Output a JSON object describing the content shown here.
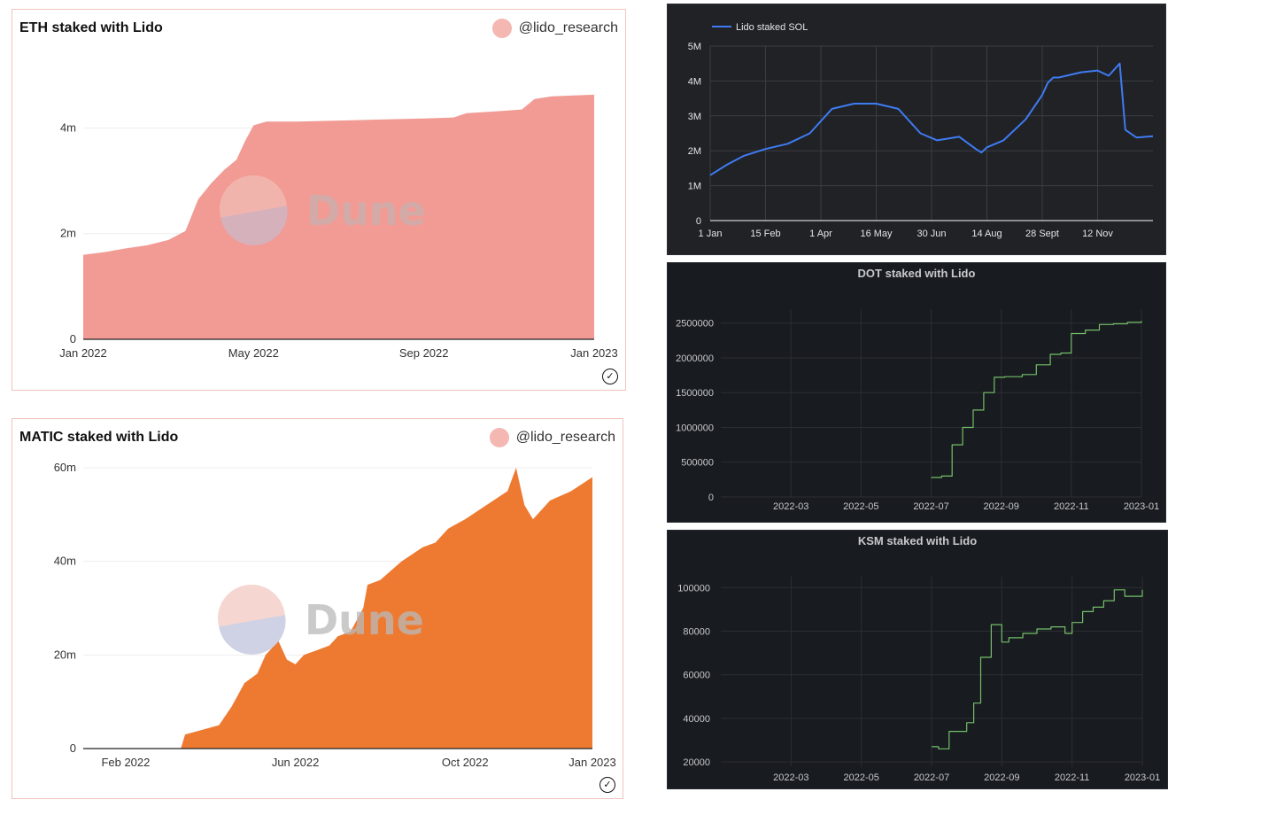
{
  "colors": {
    "eth_fill": "#f19b94",
    "matic_fill": "#ee7a32",
    "sol_line": "#3f7bf2",
    "grafana_line": "#73bf69",
    "handle_dot": "#f4b7b1"
  },
  "watermark": "Dune",
  "charts": {
    "eth": {
      "title": "ETH staked with Lido",
      "handle": "@lido_research",
      "verified_icon": "check-circle-icon",
      "chart_data": {
        "type": "area",
        "title": "ETH staked with Lido",
        "x_ticks": [
          "Jan 2022",
          "May 2022",
          "Sep 2022",
          "Jan 2023"
        ],
        "y_ticks": [
          "0",
          "2m",
          "4m"
        ],
        "ylim": [
          0,
          5.4
        ],
        "xlim": [
          0,
          12
        ],
        "series": [
          {
            "x": [
              0,
              0.5,
              1.0,
              1.5,
              2.0,
              2.4,
              2.7,
              3.0,
              3.3,
              3.6,
              3.8,
              4.0,
              4.3,
              4.6,
              5.0,
              6.0,
              7.0,
              8.0,
              8.7,
              9.0,
              9.8,
              10.3,
              10.6,
              11.0,
              12.0
            ],
            "y": [
              1.6,
              1.65,
              1.72,
              1.78,
              1.88,
              2.05,
              2.65,
              2.95,
              3.2,
              3.4,
              3.75,
              4.05,
              4.12,
              4.12,
              4.12,
              4.14,
              4.16,
              4.18,
              4.2,
              4.28,
              4.32,
              4.35,
              4.55,
              4.6,
              4.63
            ]
          }
        ]
      }
    },
    "matic": {
      "title": "MATIC staked with Lido",
      "handle": "@lido_research",
      "verified_icon": "check-circle-icon",
      "chart_data": {
        "type": "area",
        "title": "MATIC staked with Lido",
        "x_ticks": [
          "Feb 2022",
          "Jun 2022",
          "Oct 2022",
          "Jan 2023"
        ],
        "y_ticks": [
          "0",
          "20m",
          "40m",
          "60m"
        ],
        "ylim": [
          0,
          60
        ],
        "xlim": [
          0,
          12
        ],
        "series": [
          {
            "x": [
              0,
              1.5,
              2.3,
              2.4,
              2.8,
              3.2,
              3.5,
              3.8,
              4.1,
              4.3,
              4.6,
              4.8,
              5.0,
              5.2,
              5.5,
              5.8,
              6.0,
              6.3,
              6.6,
              6.7,
              7.0,
              7.5,
              8.0,
              8.3,
              8.6,
              9.0,
              9.5,
              10.0,
              10.2,
              10.4,
              10.6,
              11.0,
              11.5,
              12.0
            ],
            "y": [
              0,
              0,
              0,
              3,
              4,
              5,
              9,
              14,
              16,
              20,
              23,
              19,
              18,
              20,
              21,
              22,
              24,
              25,
              30,
              35,
              36,
              40,
              43,
              44,
              47,
              49,
              52,
              55,
              60,
              52,
              49,
              53,
              55,
              58
            ]
          }
        ]
      }
    },
    "sol": {
      "legend": "Lido staked SOL",
      "chart_data": {
        "type": "line",
        "x_ticks": [
          "1 Jan",
          "15 Feb",
          "1 Apr",
          "16 May",
          "30 Jun",
          "14 Aug",
          "28 Sept",
          "12 Nov"
        ],
        "y_ticks": [
          "0",
          "1M",
          "2M",
          "3M",
          "4M",
          "5M"
        ],
        "ylim": [
          0,
          5
        ],
        "xlim": [
          0,
          8
        ],
        "series": [
          {
            "name": "Lido staked SOL",
            "x": [
              0,
              0.3,
              0.6,
              1.0,
              1.4,
              1.8,
              2.2,
              2.6,
              3.0,
              3.4,
              3.8,
              4.1,
              4.5,
              4.8,
              4.9,
              5.0,
              5.3,
              5.7,
              6.0,
              6.1,
              6.2,
              6.3,
              6.7,
              7.0,
              7.2,
              7.4,
              7.5,
              7.7,
              8.0
            ],
            "y": [
              1.3,
              1.6,
              1.85,
              2.05,
              2.2,
              2.5,
              3.2,
              3.35,
              3.35,
              3.2,
              2.5,
              2.3,
              2.4,
              2.05,
              1.95,
              2.1,
              2.3,
              2.9,
              3.6,
              3.95,
              4.1,
              4.1,
              4.25,
              4.3,
              4.15,
              4.5,
              2.6,
              2.38,
              2.42
            ]
          }
        ]
      }
    },
    "dot": {
      "title": "DOT staked with Lido",
      "chart_data": {
        "type": "line",
        "title": "DOT staked with Lido",
        "x_ticks": [
          "2022-03",
          "2022-05",
          "2022-07",
          "2022-09",
          "2022-11",
          "2023-01"
        ],
        "y_ticks": [
          "0",
          "500000",
          "1000000",
          "1500000",
          "2000000",
          "2500000"
        ],
        "ylim": [
          0,
          2700000
        ],
        "xlim": [
          0,
          12
        ],
        "series": [
          {
            "x": [
              6.0,
              6.3,
              6.6,
              6.9,
              7.2,
              7.5,
              7.8,
              8.1,
              8.6,
              9.0,
              9.4,
              9.7,
              10.0,
              10.4,
              10.8,
              11.2,
              11.6,
              12.0
            ],
            "y": [
              280000,
              300000,
              750000,
              1000000,
              1250000,
              1500000,
              1720000,
              1730000,
              1760000,
              1900000,
              2050000,
              2070000,
              2350000,
              2400000,
              2480000,
              2490000,
              2510000,
              2530000
            ]
          }
        ]
      }
    },
    "ksm": {
      "title": "KSM staked with Lido",
      "chart_data": {
        "type": "line",
        "title": "KSM staked with Lido",
        "x_ticks": [
          "2022-03",
          "2022-05",
          "2022-07",
          "2022-09",
          "2022-11",
          "2023-01"
        ],
        "y_ticks": [
          "20000",
          "40000",
          "60000",
          "80000",
          "100000"
        ],
        "ylim": [
          18000,
          105000
        ],
        "xlim": [
          0,
          12
        ],
        "series": [
          {
            "x": [
              6.0,
              6.2,
              6.5,
              7.0,
              7.2,
              7.4,
              7.7,
              8.0,
              8.2,
              8.6,
              9.0,
              9.4,
              9.8,
              10.0,
              10.3,
              10.6,
              10.9,
              11.2,
              11.5,
              12.0
            ],
            "y": [
              27000,
              26000,
              34000,
              38000,
              47000,
              68000,
              83000,
              75000,
              77000,
              79000,
              81000,
              82000,
              79000,
              84000,
              89000,
              91000,
              94000,
              99000,
              96000,
              99000
            ]
          }
        ]
      }
    }
  }
}
